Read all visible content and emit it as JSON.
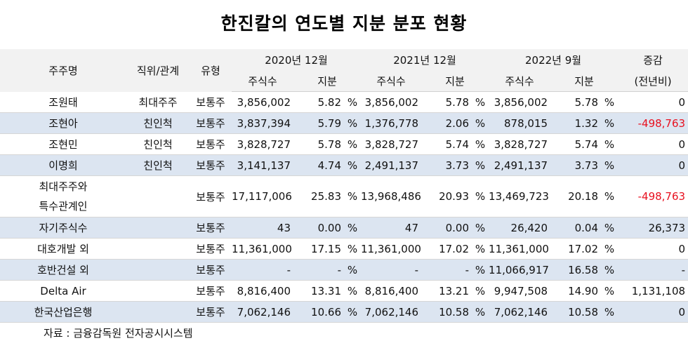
{
  "title": "한진칼의 연도별 지분 분포 현황",
  "header": {
    "name": "주주명",
    "position": "직위/관계",
    "type": "유형",
    "period1": "2020년 12월",
    "period2": "2021년 12월",
    "period3": "2022년 9월",
    "shares": "주식수",
    "stake": "지분",
    "change1": "증감",
    "change2": "(전년비)"
  },
  "rows": [
    {
      "name": "조원태",
      "rel": "최대주주",
      "type": "보통주",
      "s1": "3,856,002",
      "p1": "5.82",
      "u1": "%",
      "s2": "3,856,002",
      "p2": "5.78",
      "u2": "%",
      "s3": "3,856,002",
      "p3": "5.78",
      "u3": "%",
      "chg": "0"
    },
    {
      "name": "조현아",
      "rel": "친인척",
      "type": "보통주",
      "s1": "3,837,394",
      "p1": "5.79",
      "u1": "%",
      "s2": "1,376,778",
      "p2": "2.06",
      "u2": "%",
      "s3": "878,015",
      "p3": "1.32",
      "u3": "%",
      "chg": "-498,763"
    },
    {
      "name": "조현민",
      "rel": "친인척",
      "type": "보통주",
      "s1": "3,828,727",
      "p1": "5.78",
      "u1": "%",
      "s2": "3,828,727",
      "p2": "5.74",
      "u2": "%",
      "s3": "3,828,727",
      "p3": "5.74",
      "u3": "%",
      "chg": "0"
    },
    {
      "name": "이명희",
      "rel": "친인척",
      "type": "보통주",
      "s1": "3,141,137",
      "p1": "4.74",
      "u1": "%",
      "s2": "2,491,137",
      "p2": "3.73",
      "u2": "%",
      "s3": "2,491,137",
      "p3": "3.73",
      "u3": "%",
      "chg": "0"
    },
    {
      "name": "최대주주와\n특수관계인",
      "rel": "",
      "type": "보통주",
      "s1": "17,117,006",
      "p1": "25.83",
      "u1": "%",
      "s2": "13,968,486",
      "p2": "20.93",
      "u2": "%",
      "s3": "13,469,723",
      "p3": "20.18",
      "u3": "%",
      "chg": "-498,763"
    },
    {
      "name": "자기주식수",
      "rel": "",
      "type": "보통주",
      "s1": "43",
      "p1": "0.00",
      "u1": "%",
      "s2": "47",
      "p2": "0.00",
      "u2": "%",
      "s3": "26,420",
      "p3": "0.04",
      "u3": "%",
      "chg": "26,373"
    },
    {
      "name": "대호개발 외",
      "rel": "",
      "type": "보통주",
      "s1": "11,361,000",
      "p1": "17.15",
      "u1": "%",
      "s2": "11,361,000",
      "p2": "17.02",
      "u2": "%",
      "s3": "11,361,000",
      "p3": "17.02",
      "u3": "%",
      "chg": "0"
    },
    {
      "name": "호반건설 외",
      "rel": "",
      "type": "보통주",
      "s1": "-",
      "p1": "-",
      "u1": "%",
      "s2": "-",
      "p2": "-",
      "u2": "%",
      "s3": "11,066,917",
      "p3": "16.58",
      "u3": "%",
      "chg": "-"
    },
    {
      "name": "Delta Air",
      "rel": "",
      "type": "보통주",
      "s1": "8,816,400",
      "p1": "13.31",
      "u1": "%",
      "s2": "8,816,400",
      "p2": "13.21",
      "u2": "%",
      "s3": "9,947,508",
      "p3": "14.90",
      "u3": "%",
      "chg": "1,131,108"
    },
    {
      "name": "한국산업은행",
      "rel": "",
      "type": "보통주",
      "s1": "7,062,146",
      "p1": "10.66",
      "u1": "%",
      "s2": "7,062,146",
      "p2": "10.58",
      "u2": "%",
      "s3": "7,062,146",
      "p3": "10.58",
      "u3": "%",
      "chg": "0"
    }
  ],
  "source": "자료 : 금융감독원 전자공시시스템",
  "colors": {
    "header_bg": "#f2f2f2",
    "alt_row_bg": "#dce5f1",
    "negative": "#e8101f"
  }
}
